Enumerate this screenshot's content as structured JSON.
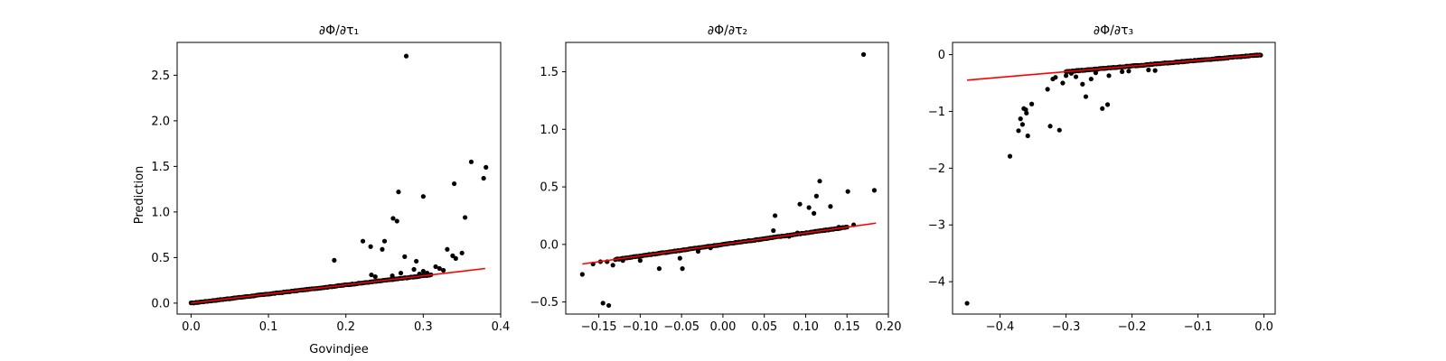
{
  "chart_data": [
    {
      "type": "scatter",
      "title": "∂Φ/∂τ₁",
      "xlabel": "Govindjee",
      "ylabel": "Prediction",
      "xlim": [
        -0.018,
        0.4
      ],
      "ylim": [
        -0.12,
        2.86
      ],
      "xticks": [
        0.0,
        0.1,
        0.2,
        0.3,
        0.4
      ],
      "xtick_labels": [
        "0.0",
        "0.1",
        "0.2",
        "0.3",
        "0.4"
      ],
      "yticks": [
        0.0,
        0.5,
        1.0,
        1.5,
        2.0,
        2.5
      ],
      "ytick_labels": [
        "0.0",
        "0.5",
        "1.0",
        "1.5",
        "2.0",
        "2.5"
      ],
      "reference_line": {
        "x": [
          0.0,
          0.38
        ],
        "y": [
          0.0,
          0.38
        ],
        "color": "#ff0000"
      },
      "scatter_color": "#000000",
      "dense_segment": {
        "x_start": 0.0,
        "x_end": 0.31,
        "slope": 1.0,
        "offset": 0.0,
        "jitter": 0.006,
        "count": 190
      },
      "outliers": [
        [
          0.185,
          0.47
        ],
        [
          0.222,
          0.68
        ],
        [
          0.232,
          0.62
        ],
        [
          0.247,
          0.59
        ],
        [
          0.25,
          0.68
        ],
        [
          0.261,
          0.93
        ],
        [
          0.266,
          0.9
        ],
        [
          0.268,
          1.22
        ],
        [
          0.278,
          2.71
        ],
        [
          0.276,
          0.51
        ],
        [
          0.291,
          0.46
        ],
        [
          0.3,
          1.17
        ],
        [
          0.316,
          0.4
        ],
        [
          0.321,
          0.38
        ],
        [
          0.331,
          0.59
        ],
        [
          0.338,
          0.52
        ],
        [
          0.342,
          0.49
        ],
        [
          0.34,
          1.31
        ],
        [
          0.35,
          0.55
        ],
        [
          0.354,
          0.94
        ],
        [
          0.362,
          1.55
        ],
        [
          0.378,
          1.37
        ],
        [
          0.381,
          1.49
        ],
        [
          0.326,
          0.36
        ],
        [
          0.305,
          0.33
        ],
        [
          0.288,
          0.37
        ],
        [
          0.271,
          0.33
        ],
        [
          0.26,
          0.3
        ],
        [
          0.238,
          0.29
        ],
        [
          0.233,
          0.31
        ],
        [
          0.3,
          0.35
        ],
        [
          0.295,
          0.32
        ]
      ]
    },
    {
      "type": "scatter",
      "title": "∂Φ/∂τ₂",
      "xlabel": "",
      "ylabel": "",
      "xlim": [
        -0.19,
        0.2
      ],
      "ylim": [
        -0.605,
        1.755
      ],
      "xticks": [
        -0.15,
        -0.1,
        -0.05,
        0.0,
        0.05,
        0.1,
        0.15,
        0.2
      ],
      "xtick_labels": [
        "−0.15",
        "−0.10",
        "−0.05",
        "0.00",
        "0.05",
        "0.10",
        "0.15",
        "0.20"
      ],
      "yticks": [
        -0.5,
        0.0,
        0.5,
        1.0,
        1.5
      ],
      "ytick_labels": [
        "−0.5",
        "0.0",
        "0.5",
        "1.0",
        "1.5"
      ],
      "reference_line": {
        "x": [
          -0.17,
          0.185
        ],
        "y": [
          -0.17,
          0.185
        ],
        "color": "#ff0000"
      },
      "scatter_color": "#000000",
      "dense_segment": {
        "x_start": -0.13,
        "x_end": 0.15,
        "slope": 1.0,
        "offset": 0.0,
        "jitter": 0.006,
        "count": 200
      },
      "outliers": [
        [
          -0.17,
          -0.26
        ],
        [
          -0.157,
          -0.17
        ],
        [
          -0.148,
          -0.15
        ],
        [
          -0.14,
          -0.15
        ],
        [
          -0.145,
          -0.51
        ],
        [
          -0.138,
          -0.53
        ],
        [
          -0.133,
          -0.18
        ],
        [
          -0.121,
          -0.14
        ],
        [
          -0.077,
          -0.21
        ],
        [
          -0.049,
          -0.21
        ],
        [
          -0.052,
          -0.12
        ],
        [
          -0.03,
          -0.06
        ],
        [
          -0.1,
          -0.14
        ],
        [
          -0.015,
          -0.03
        ],
        [
          0.063,
          0.25
        ],
        [
          0.061,
          0.12
        ],
        [
          0.08,
          0.07
        ],
        [
          0.093,
          0.35
        ],
        [
          0.104,
          0.32
        ],
        [
          0.11,
          0.27
        ],
        [
          0.113,
          0.42
        ],
        [
          0.117,
          0.55
        ],
        [
          0.13,
          0.33
        ],
        [
          0.14,
          0.15
        ],
        [
          0.151,
          0.46
        ],
        [
          0.158,
          0.17
        ],
        [
          0.17,
          1.65
        ],
        [
          0.183,
          0.47
        ],
        [
          0.09,
          0.1
        ]
      ]
    },
    {
      "type": "scatter",
      "title": "∂Φ/∂τ₃",
      "xlabel": "",
      "ylabel": "",
      "xlim": [
        -0.472,
        0.017
      ],
      "ylim": [
        -4.57,
        0.215
      ],
      "xticks": [
        -0.4,
        -0.3,
        -0.2,
        -0.1,
        0.0
      ],
      "xtick_labels": [
        "−0.4",
        "−0.3",
        "−0.2",
        "−0.1",
        "0.0"
      ],
      "yticks": [
        -4,
        -3,
        -2,
        -1,
        0
      ],
      "ytick_labels": [
        "−4",
        "−3",
        "−2",
        "−1",
        "0"
      ],
      "reference_line": {
        "x": [
          -0.45,
          -0.005
        ],
        "y": [
          -0.45,
          -0.005
        ],
        "color": "#ff0000"
      },
      "scatter_color": "#000000",
      "dense_segment": {
        "x_start": -0.3,
        "x_end": -0.005,
        "slope": 1.0,
        "offset": 0.0,
        "jitter": 0.012,
        "count": 210
      },
      "outliers": [
        [
          -0.45,
          -4.38
        ],
        [
          -0.385,
          -1.79
        ],
        [
          -0.372,
          -1.34
        ],
        [
          -0.369,
          -1.13
        ],
        [
          -0.366,
          -1.23
        ],
        [
          -0.364,
          -0.95
        ],
        [
          -0.361,
          -0.97
        ],
        [
          -0.36,
          -1.03
        ],
        [
          -0.358,
          -1.43
        ],
        [
          -0.352,
          -0.87
        ],
        [
          -0.328,
          -0.61
        ],
        [
          -0.324,
          -1.26
        ],
        [
          -0.32,
          -0.43
        ],
        [
          -0.316,
          -0.4
        ],
        [
          -0.31,
          -1.33
        ],
        [
          -0.305,
          -0.5
        ],
        [
          -0.3,
          -0.37
        ],
        [
          -0.285,
          -0.39
        ],
        [
          -0.275,
          -0.52
        ],
        [
          -0.27,
          -0.74
        ],
        [
          -0.262,
          -0.43
        ],
        [
          -0.245,
          -0.95
        ],
        [
          -0.237,
          -0.88
        ],
        [
          -0.235,
          -0.37
        ],
        [
          -0.215,
          -0.3
        ],
        [
          -0.205,
          -0.29
        ],
        [
          -0.175,
          -0.27
        ],
        [
          -0.165,
          -0.28
        ],
        [
          -0.255,
          -0.32
        ],
        [
          -0.292,
          -0.33
        ]
      ]
    }
  ]
}
